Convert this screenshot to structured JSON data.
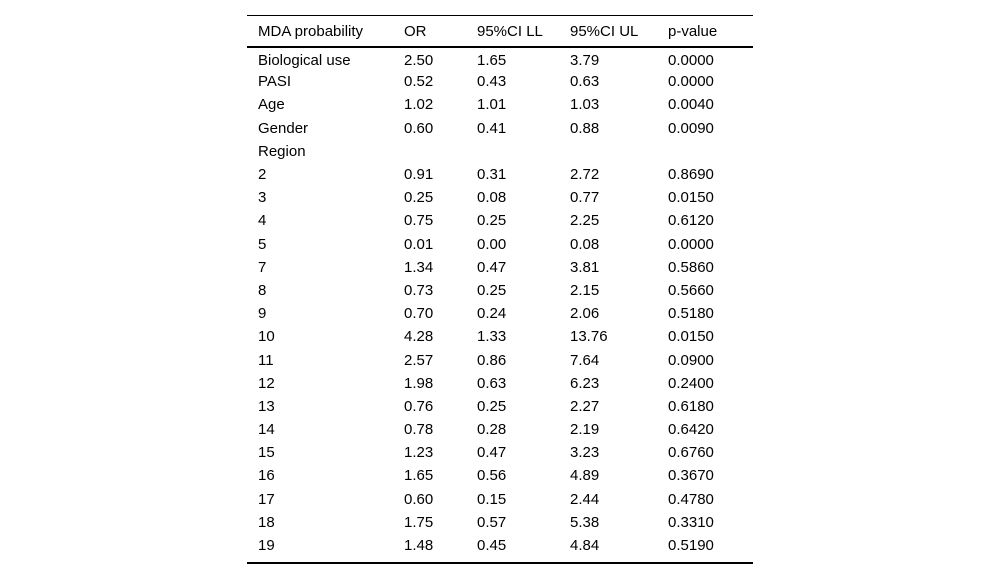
{
  "table": {
    "headers": [
      "MDA probability",
      "OR",
      "95%CI LL",
      "95%CI UL",
      "p-value"
    ],
    "rows": [
      [
        "Biological use",
        "2.50",
        "1.65",
        "3.79",
        "0.0000"
      ],
      [
        "PASI",
        "0.52",
        "0.43",
        "0.63",
        "0.0000"
      ],
      [
        "Age",
        "1.02",
        "1.01",
        "1.03",
        "0.0040"
      ],
      [
        "Gender",
        "0.60",
        "0.41",
        "0.88",
        "0.0090"
      ],
      [
        "Region",
        "",
        "",
        "",
        ""
      ],
      [
        "2",
        "0.91",
        "0.31",
        "2.72",
        "0.8690"
      ],
      [
        "3",
        "0.25",
        "0.08",
        "0.77",
        "0.0150"
      ],
      [
        "4",
        "0.75",
        "0.25",
        "2.25",
        "0.6120"
      ],
      [
        "5",
        "0.01",
        "0.00",
        "0.08",
        "0.0000"
      ],
      [
        "7",
        "1.34",
        "0.47",
        "3.81",
        "0.5860"
      ],
      [
        "8",
        "0.73",
        "0.25",
        "2.15",
        "0.5660"
      ],
      [
        "9",
        "0.70",
        "0.24",
        "2.06",
        "0.5180"
      ],
      [
        "10",
        "4.28",
        "1.33",
        "13.76",
        "0.0150"
      ],
      [
        "11",
        "2.57",
        "0.86",
        "7.64",
        "0.0900"
      ],
      [
        "12",
        "1.98",
        "0.63",
        "6.23",
        "0.2400"
      ],
      [
        "13",
        "0.76",
        "0.25",
        "2.27",
        "0.6180"
      ],
      [
        "14",
        "0.78",
        "0.28",
        "2.19",
        "0.6420"
      ],
      [
        "15",
        "1.23",
        "0.47",
        "3.23",
        "0.6760"
      ],
      [
        "16",
        "1.65",
        "0.56",
        "4.89",
        "0.3670"
      ],
      [
        "17",
        "0.60",
        "0.15",
        "2.44",
        "0.4780"
      ],
      [
        "18",
        "1.75",
        "0.57",
        "5.38",
        "0.3310"
      ],
      [
        "19",
        "1.48",
        "0.45",
        "4.84",
        "0.5190"
      ]
    ]
  }
}
